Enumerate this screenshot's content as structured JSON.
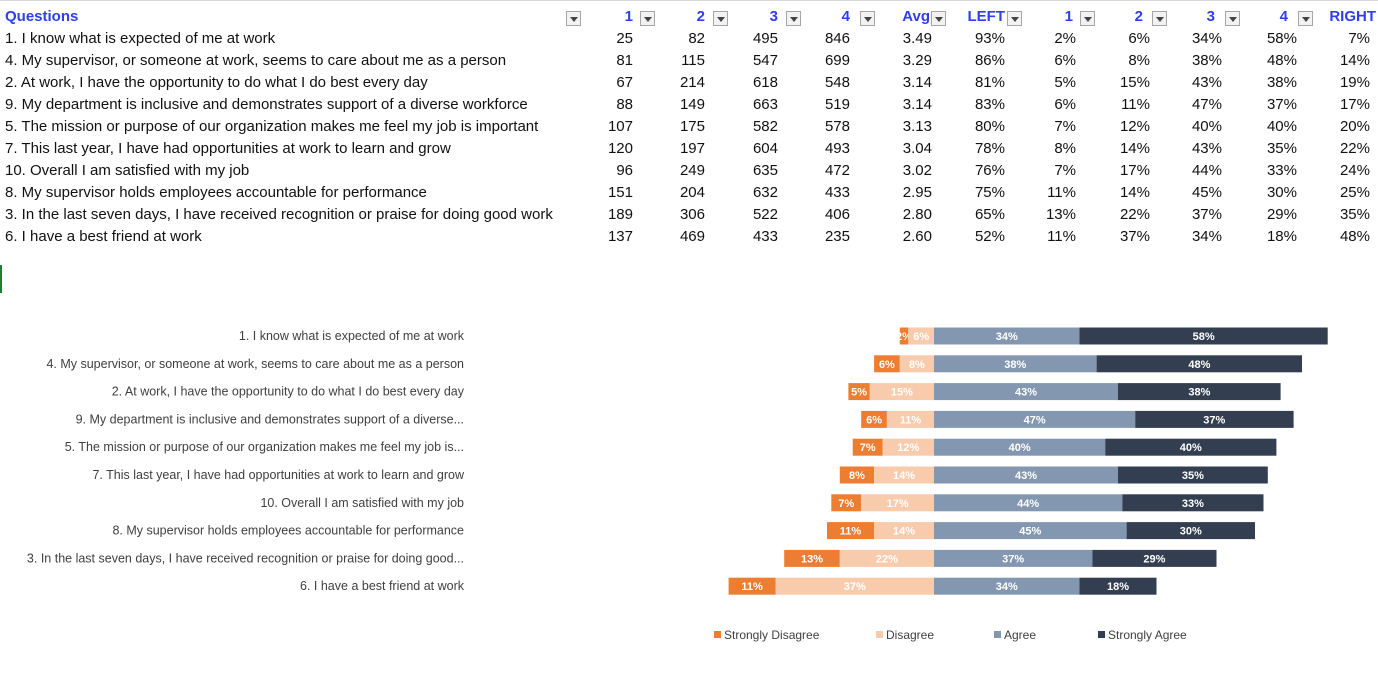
{
  "table": {
    "headers": {
      "questions": "Questions",
      "c1": "1",
      "c2": "2",
      "c3": "3",
      "c4": "4",
      "avg": "Avg",
      "left": "LEFT",
      "p1": "1",
      "p2": "2",
      "p3": "3",
      "p4": "4",
      "right": "RIGHT"
    },
    "rows": [
      {
        "q": "1. I know what is expected of me at work",
        "c1": "25",
        "c2": "82",
        "c3": "495",
        "c4": "846",
        "avg": "3.49",
        "left": "93%",
        "p1": "2%",
        "p2": "6%",
        "p3": "34%",
        "p4": "58%",
        "right": "7%"
      },
      {
        "q": "4. My supervisor, or someone at work, seems to care about me as a person",
        "c1": "81",
        "c2": "115",
        "c3": "547",
        "c4": "699",
        "avg": "3.29",
        "left": "86%",
        "p1": "6%",
        "p2": "8%",
        "p3": "38%",
        "p4": "48%",
        "right": "14%"
      },
      {
        "q": "2. At work, I have the opportunity to do what I do best every day",
        "c1": "67",
        "c2": "214",
        "c3": "618",
        "c4": "548",
        "avg": "3.14",
        "left": "81%",
        "p1": "5%",
        "p2": "15%",
        "p3": "43%",
        "p4": "38%",
        "right": "19%"
      },
      {
        "q": "9. My department is inclusive and demonstrates support of a diverse workforce",
        "c1": "88",
        "c2": "149",
        "c3": "663",
        "c4": "519",
        "avg": "3.14",
        "left": "83%",
        "p1": "6%",
        "p2": "11%",
        "p3": "47%",
        "p4": "37%",
        "right": "17%"
      },
      {
        "q": "5. The mission or purpose of our organization makes me feel my job is important",
        "c1": "107",
        "c2": "175",
        "c3": "582",
        "c4": "578",
        "avg": "3.13",
        "left": "80%",
        "p1": "7%",
        "p2": "12%",
        "p3": "40%",
        "p4": "40%",
        "right": "20%"
      },
      {
        "q": "7. This last year, I have had opportunities at work to learn and grow",
        "c1": "120",
        "c2": "197",
        "c3": "604",
        "c4": "493",
        "avg": "3.04",
        "left": "78%",
        "p1": "8%",
        "p2": "14%",
        "p3": "43%",
        "p4": "35%",
        "right": "22%"
      },
      {
        "q": "10. Overall I am satisfied with my job",
        "c1": "96",
        "c2": "249",
        "c3": "635",
        "c4": "472",
        "avg": "3.02",
        "left": "76%",
        "p1": "7%",
        "p2": "17%",
        "p3": "44%",
        "p4": "33%",
        "right": "24%"
      },
      {
        "q": "8. My supervisor holds employees accountable for performance",
        "c1": "151",
        "c2": "204",
        "c3": "632",
        "c4": "433",
        "avg": "2.95",
        "left": "75%",
        "p1": "11%",
        "p2": "14%",
        "p3": "45%",
        "p4": "30%",
        "right": "25%"
      },
      {
        "q": "3. In the last seven days, I have received recognition or praise for doing good work",
        "c1": "189",
        "c2": "306",
        "c3": "522",
        "c4": "406",
        "avg": "2.80",
        "left": "65%",
        "p1": "13%",
        "p2": "22%",
        "p3": "37%",
        "p4": "29%",
        "right": "35%"
      },
      {
        "q": "6. I have a best friend at work",
        "c1": "137",
        "c2": "469",
        "c3": "433",
        "c4": "235",
        "avg": "2.60",
        "left": "52%",
        "p1": "11%",
        "p2": "37%",
        "p3": "34%",
        "p4": "18%",
        "right": "48%"
      }
    ]
  },
  "colors": {
    "header_text": "#2e3ef0",
    "strongly_disagree": "#ed7d31",
    "disagree": "#f8cbad",
    "agree": "#8497b0",
    "strongly_agree": "#333f50"
  },
  "chart_data": {
    "type": "bar",
    "orientation": "horizontal",
    "stacked": "diverging",
    "categories": [
      "1. I know what is expected of me at work",
      "4. My supervisor, or someone at work, seems to care about me as a person",
      "2. At work, I have the opportunity to do what I do best every day",
      "9. My department is inclusive and demonstrates support of a diverse...",
      "5. The mission or purpose of our organization makes me feel my job is...",
      "7. This last year, I have had opportunities at work to learn and grow",
      "10. Overall I am satisfied with my job",
      "8. My supervisor holds employees accountable for performance",
      "3. In the last seven days, I have received recognition or praise for doing good...",
      "6. I have a best friend at work"
    ],
    "series": [
      {
        "name": "Strongly Disagree",
        "values": [
          2,
          6,
          5,
          6,
          7,
          8,
          7,
          11,
          13,
          11
        ],
        "labels": [
          "2%",
          "6%",
          "5%",
          "6%",
          "7%",
          "8%",
          "7%",
          "11%",
          "13%",
          "11%"
        ]
      },
      {
        "name": "Disagree",
        "values": [
          6,
          8,
          15,
          11,
          12,
          14,
          17,
          14,
          22,
          37
        ],
        "labels": [
          "6%",
          "8%",
          "15%",
          "11%",
          "12%",
          "14%",
          "17%",
          "14%",
          "22%",
          "37%"
        ]
      },
      {
        "name": "Agree",
        "values": [
          34,
          38,
          43,
          47,
          40,
          43,
          44,
          45,
          37,
          34
        ],
        "labels": [
          "34%",
          "38%",
          "43%",
          "47%",
          "40%",
          "43%",
          "44%",
          "45%",
          "37%",
          "34%"
        ]
      },
      {
        "name": "Strongly Agree",
        "values": [
          58,
          48,
          38,
          37,
          40,
          35,
          33,
          30,
          29,
          18
        ],
        "labels": [
          "58%",
          "48%",
          "38%",
          "37%",
          "40%",
          "35%",
          "33%",
          "30%",
          "29%",
          "18%"
        ]
      }
    ],
    "legend_position": "bottom",
    "grid": false
  }
}
